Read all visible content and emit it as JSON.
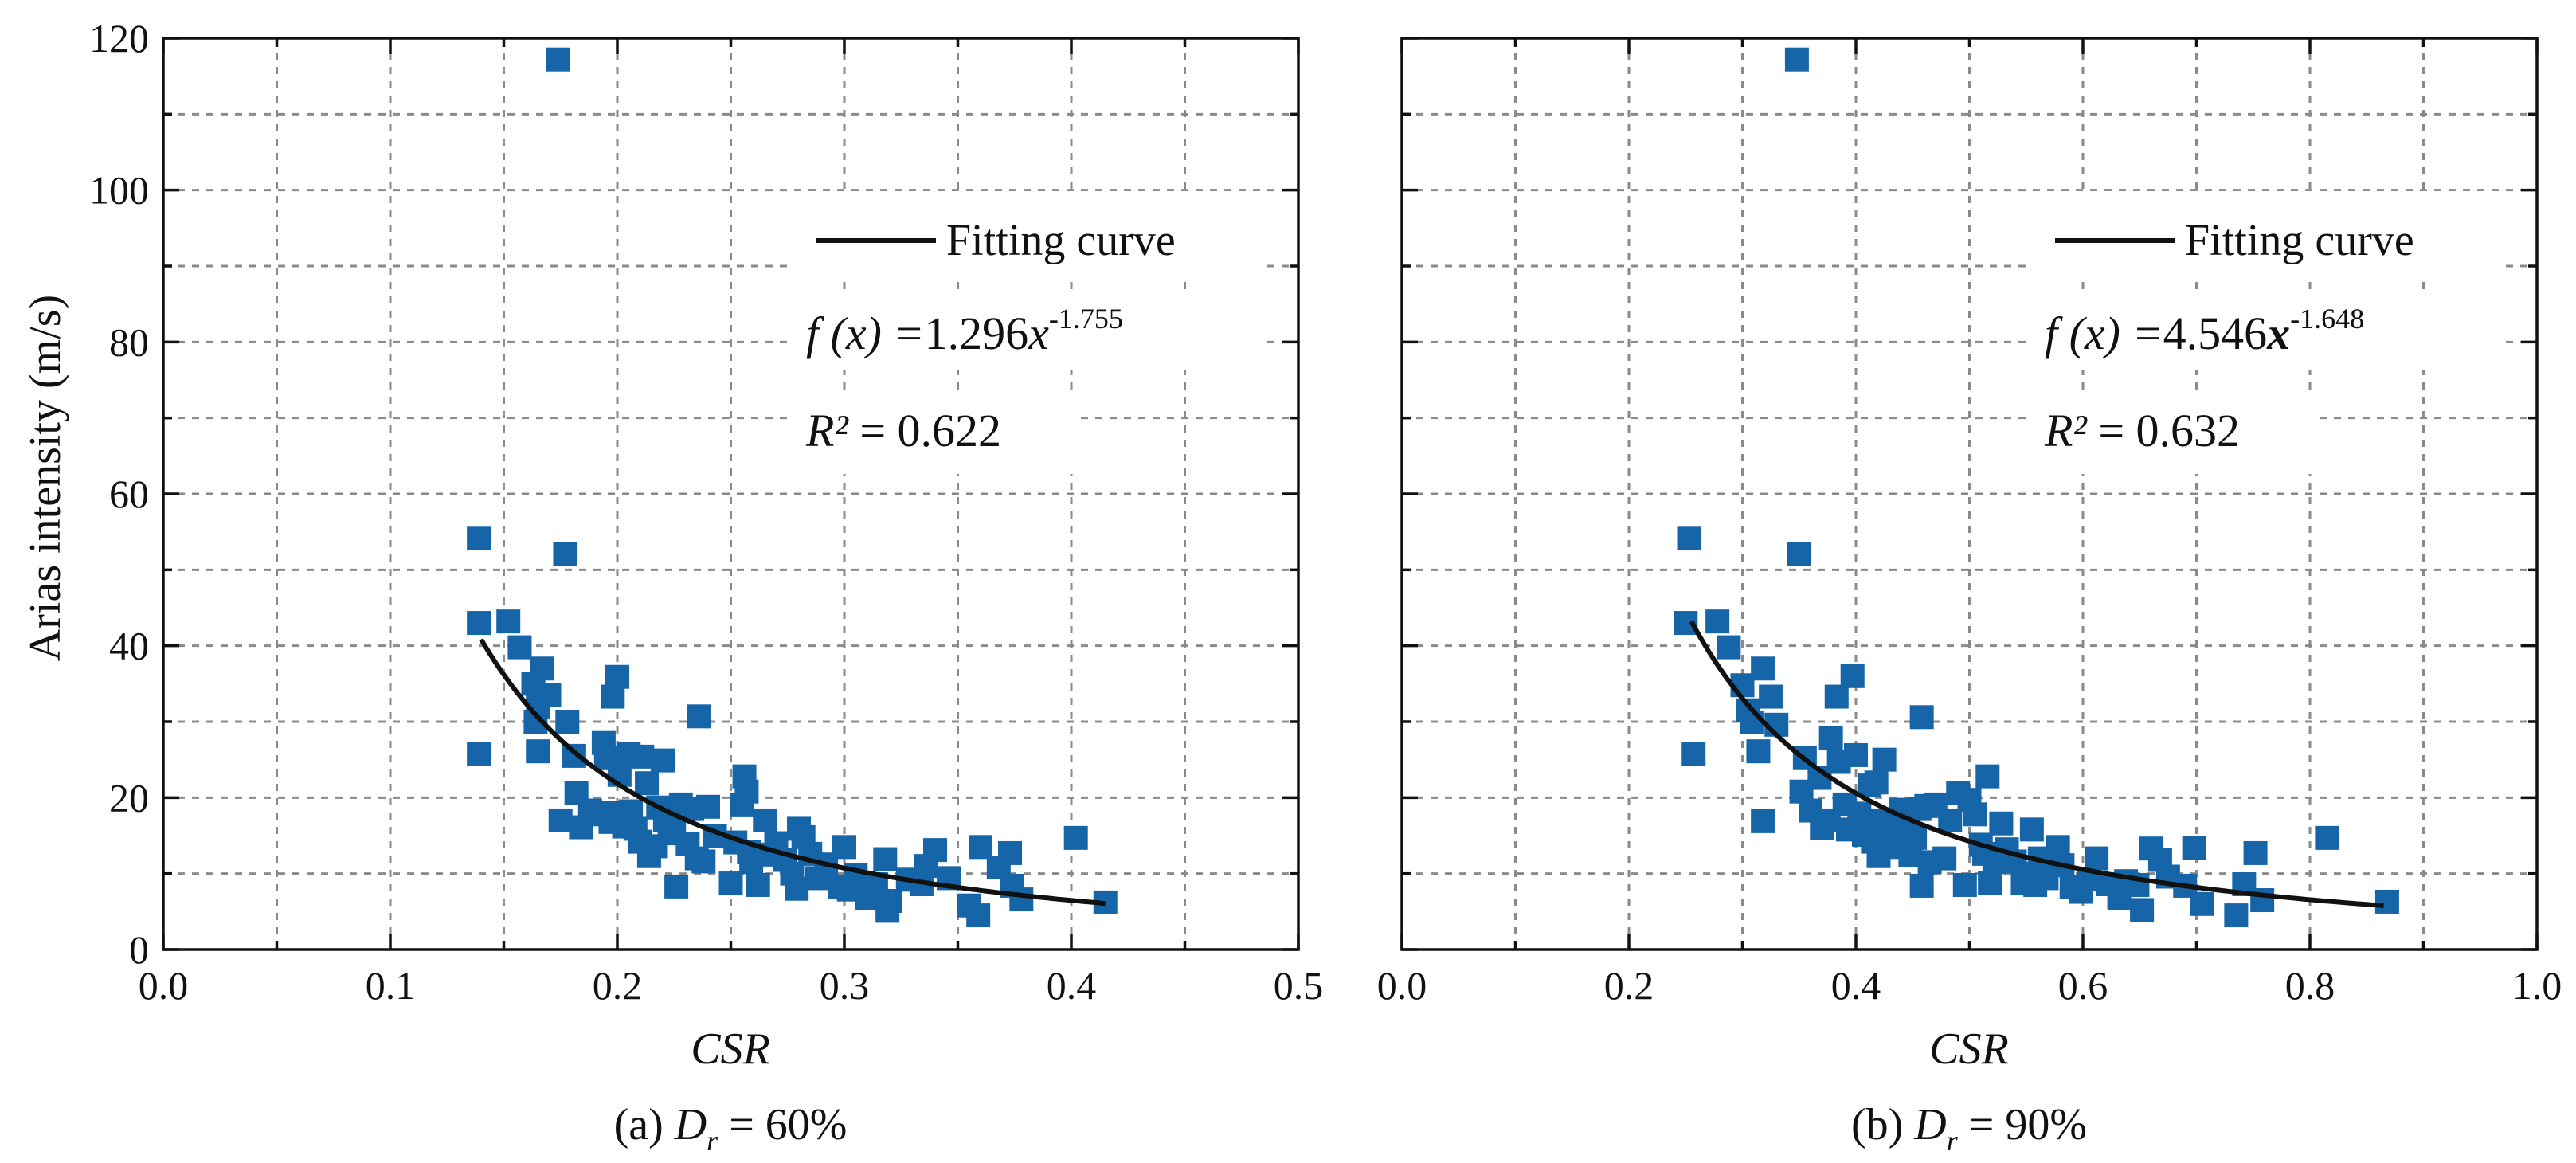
{
  "colors": {
    "marker": "#1565a8",
    "curve": "#111111",
    "grid": "#8a8a8a"
  },
  "chart_data": [
    {
      "type": "scatter",
      "panel": "a",
      "caption_prefix": "(a) ",
      "caption_var": "D",
      "caption_sub": "r",
      "caption_suffix": " = 60%",
      "xlabel": "CSR",
      "ylabel": "Arias intensity (m/s)",
      "xlim": [
        0.0,
        0.5
      ],
      "ylim": [
        0,
        120
      ],
      "xticks": [
        "0.0",
        "0.1",
        "0.2",
        "0.3",
        "0.4",
        "0.5"
      ],
      "yticks": [
        "0",
        "20",
        "40",
        "60",
        "80",
        "100",
        "120"
      ],
      "grid": true,
      "legend": {
        "label": "Fitting curve",
        "placement": "top-right"
      },
      "equation": {
        "lhs": "f (x) =",
        "coef": "1.296",
        "var": "x",
        "exp": "-1.755"
      },
      "r2": {
        "label": "R²",
        "text": " = 0.622"
      },
      "fit": {
        "a": 1.296,
        "b": -1.755,
        "x_range": [
          0.14,
          0.415
        ]
      },
      "points": [
        [
          0.139,
          54.2
        ],
        [
          0.139,
          43.0
        ],
        [
          0.139,
          25.7
        ],
        [
          0.152,
          43.2
        ],
        [
          0.157,
          39.8
        ],
        [
          0.163,
          35.0
        ],
        [
          0.165,
          32.0
        ],
        [
          0.164,
          30.0
        ],
        [
          0.165,
          26.1
        ],
        [
          0.167,
          37.0
        ],
        [
          0.17,
          33.5
        ],
        [
          0.174,
          117.2
        ],
        [
          0.175,
          17.0
        ],
        [
          0.177,
          52.1
        ],
        [
          0.178,
          30.0
        ],
        [
          0.181,
          25.5
        ],
        [
          0.182,
          20.6
        ],
        [
          0.184,
          16.1
        ],
        [
          0.188,
          18.3
        ],
        [
          0.192,
          17.8
        ],
        [
          0.194,
          27.2
        ],
        [
          0.195,
          25.2
        ],
        [
          0.196,
          18.0
        ],
        [
          0.197,
          16.8
        ],
        [
          0.198,
          33.3
        ],
        [
          0.2,
          35.9
        ],
        [
          0.201,
          23.0
        ],
        [
          0.203,
          16.2
        ],
        [
          0.205,
          25.8
        ],
        [
          0.206,
          18.2
        ],
        [
          0.208,
          15.9
        ],
        [
          0.21,
          14.2
        ],
        [
          0.211,
          25.4
        ],
        [
          0.213,
          21.9
        ],
        [
          0.214,
          12.3
        ],
        [
          0.217,
          13.6
        ],
        [
          0.218,
          18.7
        ],
        [
          0.22,
          24.9
        ],
        [
          0.221,
          17.1
        ],
        [
          0.223,
          15.3
        ],
        [
          0.225,
          16.6
        ],
        [
          0.226,
          8.3
        ],
        [
          0.228,
          19.1
        ],
        [
          0.231,
          13.9
        ],
        [
          0.233,
          18.5
        ],
        [
          0.235,
          12.0
        ],
        [
          0.236,
          30.7
        ],
        [
          0.238,
          11.6
        ],
        [
          0.24,
          18.8
        ],
        [
          0.243,
          14.9
        ],
        [
          0.25,
          8.7
        ],
        [
          0.252,
          14.1
        ],
        [
          0.255,
          19.0
        ],
        [
          0.256,
          22.8
        ],
        [
          0.257,
          20.8
        ],
        [
          0.258,
          12.8
        ],
        [
          0.259,
          11.5
        ],
        [
          0.262,
          8.5
        ],
        [
          0.265,
          17.0
        ],
        [
          0.268,
          12.5
        ],
        [
          0.27,
          14.0
        ],
        [
          0.274,
          11.8
        ],
        [
          0.277,
          10.0
        ],
        [
          0.279,
          8.0
        ],
        [
          0.28,
          15.9
        ],
        [
          0.282,
          14.8
        ],
        [
          0.285,
          12.6
        ],
        [
          0.288,
          9.4
        ],
        [
          0.292,
          11.2
        ],
        [
          0.298,
          8.2
        ],
        [
          0.3,
          13.5
        ],
        [
          0.302,
          7.9
        ],
        [
          0.305,
          9.8
        ],
        [
          0.31,
          6.8
        ],
        [
          0.314,
          8.6
        ],
        [
          0.318,
          11.9
        ],
        [
          0.319,
          5.1
        ],
        [
          0.32,
          6.4
        ],
        [
          0.328,
          9.2
        ],
        [
          0.334,
          8.6
        ],
        [
          0.336,
          11.0
        ],
        [
          0.34,
          13.1
        ],
        [
          0.346,
          9.4
        ],
        [
          0.355,
          5.8
        ],
        [
          0.359,
          4.5
        ],
        [
          0.36,
          13.5
        ],
        [
          0.368,
          10.8
        ],
        [
          0.373,
          12.7
        ],
        [
          0.374,
          8.4
        ],
        [
          0.378,
          6.6
        ],
        [
          0.402,
          14.7
        ],
        [
          0.415,
          6.2
        ]
      ]
    },
    {
      "type": "scatter",
      "panel": "b",
      "caption_prefix": "(b) ",
      "caption_var": "D",
      "caption_sub": "r",
      "caption_suffix": " =  90%",
      "xlabel": "CSR",
      "ylabel": "",
      "xlim": [
        0.0,
        1.0
      ],
      "ylim": [
        0,
        120
      ],
      "xticks": [
        "0.0",
        "0.2",
        "0.4",
        "0.6",
        "0.8",
        "1.0"
      ],
      "yticks": [],
      "grid": true,
      "legend": {
        "label": "Fitting curve",
        "placement": "top-right"
      },
      "equation": {
        "lhs": "f (x) =",
        "coef": "4.546",
        "var": "x",
        "exp": "-1.648"
      },
      "r2": {
        "label": "R²",
        "text": " = 0.632"
      },
      "fit": {
        "a": 4.546,
        "b": -1.648,
        "x_range": [
          0.255,
          0.865
        ]
      },
      "points": [
        [
          0.253,
          54.2
        ],
        [
          0.25,
          43.0
        ],
        [
          0.257,
          25.7
        ],
        [
          0.278,
          43.2
        ],
        [
          0.288,
          39.8
        ],
        [
          0.3,
          34.8
        ],
        [
          0.305,
          31.5
        ],
        [
          0.308,
          29.9
        ],
        [
          0.314,
          26.1
        ],
        [
          0.318,
          37.0
        ],
        [
          0.318,
          16.9
        ],
        [
          0.325,
          33.3
        ],
        [
          0.33,
          29.6
        ],
        [
          0.348,
          117.2
        ],
        [
          0.35,
          52.1
        ],
        [
          0.352,
          20.8
        ],
        [
          0.355,
          25.2
        ],
        [
          0.36,
          18.3
        ],
        [
          0.368,
          22.6
        ],
        [
          0.37,
          16.0
        ],
        [
          0.376,
          17.0
        ],
        [
          0.378,
          27.8
        ],
        [
          0.383,
          33.3
        ],
        [
          0.385,
          24.7
        ],
        [
          0.39,
          19.1
        ],
        [
          0.393,
          15.8
        ],
        [
          0.397,
          36.0
        ],
        [
          0.4,
          25.6
        ],
        [
          0.403,
          17.9
        ],
        [
          0.407,
          15.1
        ],
        [
          0.412,
          21.6
        ],
        [
          0.415,
          14.2
        ],
        [
          0.418,
          22.0
        ],
        [
          0.42,
          12.3
        ],
        [
          0.422,
          17.0
        ],
        [
          0.425,
          25.0
        ],
        [
          0.428,
          16.2
        ],
        [
          0.432,
          13.5
        ],
        [
          0.437,
          14.9
        ],
        [
          0.44,
          18.4
        ],
        [
          0.445,
          16.6
        ],
        [
          0.448,
          12.4
        ],
        [
          0.452,
          14.7
        ],
        [
          0.456,
          18.5
        ],
        [
          0.458,
          30.6
        ],
        [
          0.458,
          8.4
        ],
        [
          0.462,
          18.9
        ],
        [
          0.465,
          11.5
        ],
        [
          0.47,
          19.1
        ],
        [
          0.478,
          12.0
        ],
        [
          0.483,
          17.0
        ],
        [
          0.49,
          20.6
        ],
        [
          0.496,
          8.5
        ],
        [
          0.5,
          19.7
        ],
        [
          0.505,
          17.8
        ],
        [
          0.51,
          13.8
        ],
        [
          0.513,
          12.6
        ],
        [
          0.516,
          22.8
        ],
        [
          0.518,
          8.8
        ],
        [
          0.522,
          11.5
        ],
        [
          0.528,
          16.6
        ],
        [
          0.533,
          13.2
        ],
        [
          0.54,
          11.6
        ],
        [
          0.547,
          8.7
        ],
        [
          0.55,
          10.0
        ],
        [
          0.555,
          15.8
        ],
        [
          0.558,
          8.5
        ],
        [
          0.562,
          12.0
        ],
        [
          0.568,
          9.4
        ],
        [
          0.578,
          13.5
        ],
        [
          0.582,
          11.1
        ],
        [
          0.59,
          8.2
        ],
        [
          0.598,
          7.6
        ],
        [
          0.605,
          9.3
        ],
        [
          0.612,
          12.0
        ],
        [
          0.622,
          8.6
        ],
        [
          0.632,
          6.8
        ],
        [
          0.638,
          9.0
        ],
        [
          0.648,
          8.5
        ],
        [
          0.652,
          5.2
        ],
        [
          0.66,
          13.3
        ],
        [
          0.668,
          11.8
        ],
        [
          0.675,
          9.6
        ],
        [
          0.69,
          8.4
        ],
        [
          0.698,
          13.4
        ],
        [
          0.705,
          6.0
        ],
        [
          0.735,
          4.5
        ],
        [
          0.742,
          8.6
        ],
        [
          0.752,
          12.7
        ],
        [
          0.758,
          6.5
        ],
        [
          0.815,
          14.7
        ],
        [
          0.868,
          6.3
        ]
      ]
    }
  ]
}
